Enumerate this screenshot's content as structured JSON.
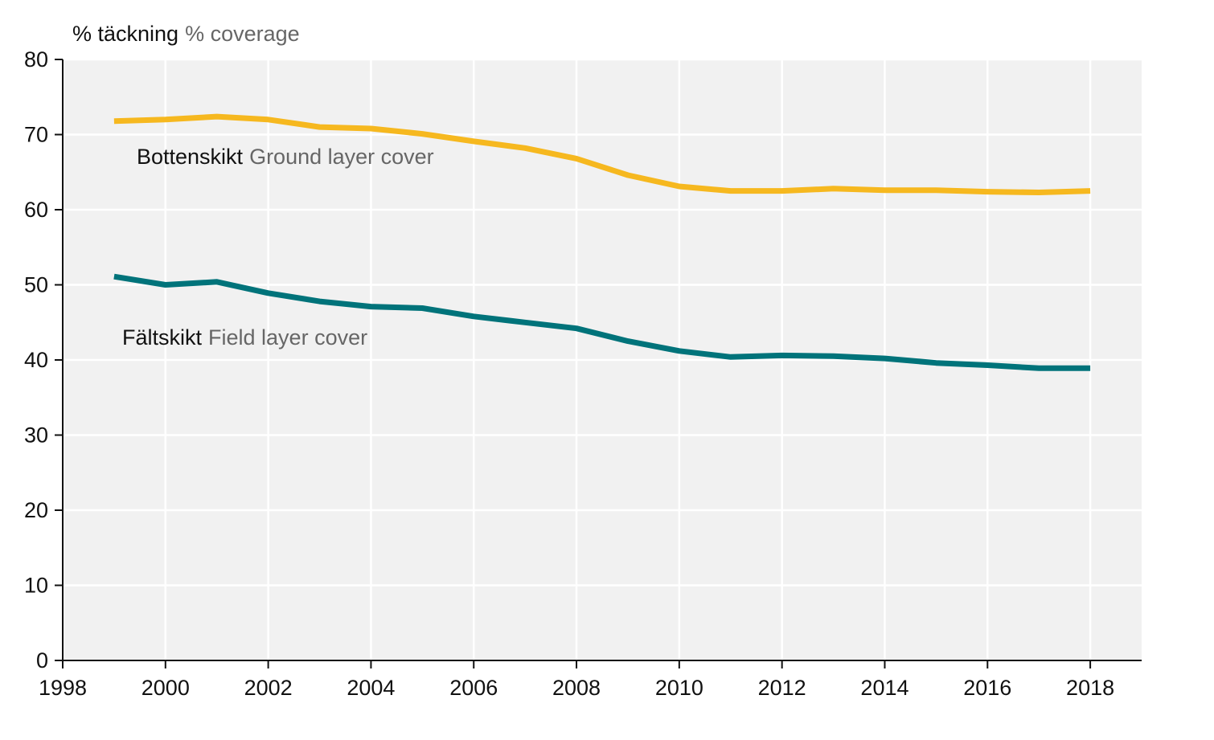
{
  "chart_data": {
    "type": "line",
    "ylabel": {
      "sv": "% täckning",
      "en": "% coverage"
    },
    "xlim": [
      1998,
      2019
    ],
    "ylim": [
      0,
      80
    ],
    "x_ticks": [
      1998,
      2000,
      2002,
      2004,
      2006,
      2008,
      2010,
      2012,
      2014,
      2016,
      2018
    ],
    "y_ticks": [
      0,
      10,
      20,
      30,
      40,
      50,
      60,
      70,
      80
    ],
    "grid": true,
    "background_color": "#f1f1f1",
    "x": [
      1999,
      2000,
      2001,
      2002,
      2003,
      2004,
      2005,
      2006,
      2007,
      2008,
      2009,
      2010,
      2011,
      2012,
      2013,
      2014,
      2015,
      2016,
      2017,
      2018
    ],
    "series": [
      {
        "name": "Bottenskikt",
        "name_en": "Ground layer cover",
        "color": "#f6b81f",
        "values": [
          71.8,
          72.0,
          72.4,
          72.0,
          71.0,
          70.8,
          70.1,
          69.1,
          68.2,
          66.8,
          64.6,
          63.1,
          62.5,
          62.5,
          62.8,
          62.6,
          62.6,
          62.4,
          62.3,
          62.5
        ]
      },
      {
        "name": "Fältskikt",
        "name_en": "Field layer cover",
        "color": "#00737a",
        "values": [
          51.1,
          50.0,
          50.4,
          48.9,
          47.8,
          47.1,
          46.9,
          45.8,
          45.0,
          44.2,
          42.5,
          41.2,
          40.4,
          40.6,
          40.5,
          40.2,
          39.6,
          39.3,
          38.9,
          38.9
        ]
      }
    ]
  }
}
